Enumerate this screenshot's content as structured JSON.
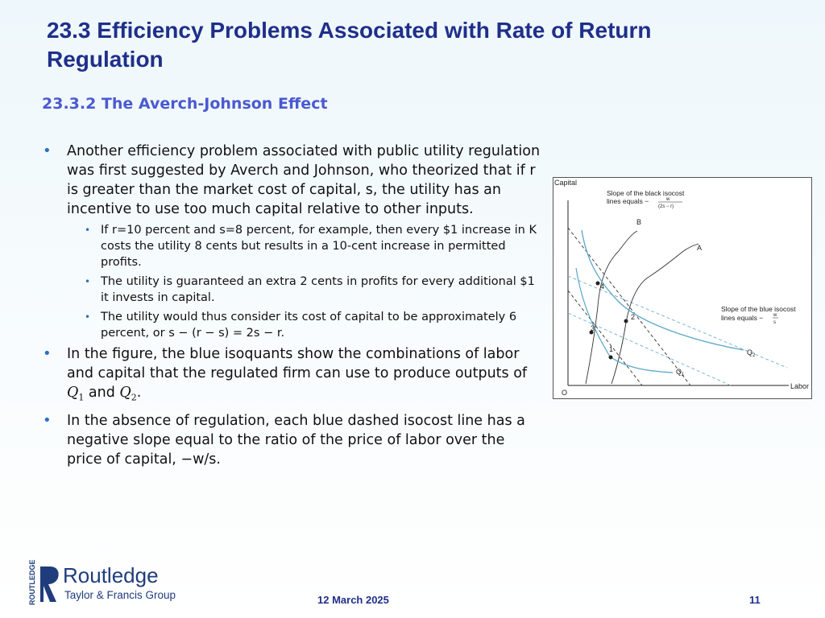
{
  "slide": {
    "title": "23.3  Efficiency Problems Associated with Rate of Return Regulation",
    "subtitle": "23.3.2  The Averch-Johnson Effect",
    "bullets": [
      {
        "text": "Another efficiency problem associated with public utility regulation was first suggested by Averch and Johnson, who theorized that if r is greater than the market cost of capital, s, the utility has an incentive to use too much capital relative to other inputs."
      },
      {
        "text_before": "In the figure, the blue isoquants show the combinations of labor and capital that the regulated firm can use to produce outputs of ",
        "q1": "Q",
        "q1_sub": "1",
        "and": " and ",
        "q2": "Q",
        "q2_sub": "2",
        "text_after": "."
      },
      {
        "text": "In the absence of regulation, each blue dashed isocost line has a negative slope equal to the ratio of the price of labor over the price of capital, −w/s."
      }
    ],
    "sub_bullets": [
      "If r=10 percent and s=8 percent, for example, then every $1 increase in K costs the utility 8 cents but results in a 10-cent increase in permitted profits.",
      "The utility is guaranteed an extra 2 cents in profits for every additional $1 it invests in capital.",
      "The utility would thus consider its cost of capital to be approximately 6 percent, or s − (r − s) = 2s − r."
    ]
  },
  "figure": {
    "y_axis_label": "Capital",
    "x_axis_label": "Labor",
    "origin_label": "O",
    "black_isocost_note": "Slope of the black isocost lines equals",
    "black_slope_num": "w",
    "black_slope_den": "(2s − r)",
    "blue_isocost_note_line1": "Slope of the blue isocost",
    "blue_isocost_note_line2": "lines equals",
    "blue_slope_num": "w",
    "blue_slope_den": "s",
    "expansion_path_a": "A",
    "expansion_path_b": "B",
    "isoquant_q1": "Q",
    "isoquant_q1_sub": "1",
    "isoquant_q2": "Q",
    "isoquant_q2_sub": "2",
    "points": [
      "1",
      "2",
      "3",
      "4"
    ],
    "colors": {
      "isoquant": "#5ba7c8",
      "blue_isocost": "#7fb6cf",
      "black": "#222222"
    }
  },
  "footer": {
    "publisher": "Routledge",
    "publisher_group": "Taylor & Francis Group",
    "publisher_vertical": "ROUTLEDGE",
    "date": "12 March 2025",
    "page": "11"
  }
}
